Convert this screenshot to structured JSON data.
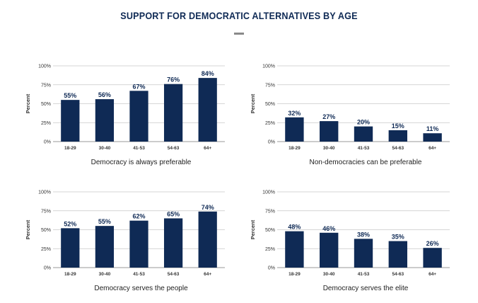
{
  "page": {
    "title": "SUPPORT FOR DEMOCRATIC ALTERNATIVES BY AGE"
  },
  "colors": {
    "bar": "#0f2a55",
    "grid": "#c8c8c8",
    "axis": "#9a9a9a"
  },
  "chart_data": [
    {
      "type": "bar",
      "title": "Democracy is always preferable",
      "ylabel": "Percent",
      "categories": [
        "18-29",
        "30-40",
        "41-53",
        "54-63",
        "64+"
      ],
      "values": [
        55,
        56,
        67,
        76,
        84
      ],
      "data_labels": [
        "55%",
        "56%",
        "67%",
        "76%",
        "84%"
      ],
      "yticks": [
        "0%",
        "25%",
        "50%",
        "75%",
        "100%"
      ],
      "ylim": [
        0,
        100
      ],
      "grid": true
    },
    {
      "type": "bar",
      "title": "Non-democracies can be preferable",
      "ylabel": "Percent",
      "categories": [
        "18-29",
        "30-40",
        "41-53",
        "54-63",
        "64+"
      ],
      "values": [
        32,
        27,
        20,
        15,
        11
      ],
      "data_labels": [
        "32%",
        "27%",
        "20%",
        "15%",
        "11%"
      ],
      "yticks": [
        "0%",
        "25%",
        "50%",
        "75%",
        "100%"
      ],
      "ylim": [
        0,
        100
      ],
      "grid": true
    },
    {
      "type": "bar",
      "title": "Democracy serves the people",
      "ylabel": "Percent",
      "categories": [
        "18-29",
        "30-40",
        "41-53",
        "54-63",
        "64+"
      ],
      "values": [
        52,
        55,
        62,
        65,
        74
      ],
      "data_labels": [
        "52%",
        "55%",
        "62%",
        "65%",
        "74%"
      ],
      "yticks": [
        "0%",
        "25%",
        "50%",
        "75%",
        "100%"
      ],
      "ylim": [
        0,
        100
      ],
      "grid": true
    },
    {
      "type": "bar",
      "title": "Democracy serves the elite",
      "ylabel": "Percent",
      "categories": [
        "18-29",
        "30-40",
        "41-53",
        "54-63",
        "64+"
      ],
      "values": [
        48,
        46,
        38,
        35,
        26
      ],
      "data_labels": [
        "48%",
        "46%",
        "38%",
        "35%",
        "26%"
      ],
      "yticks": [
        "0%",
        "25%",
        "50%",
        "75%",
        "100%"
      ],
      "ylim": [
        0,
        100
      ],
      "grid": true
    }
  ]
}
